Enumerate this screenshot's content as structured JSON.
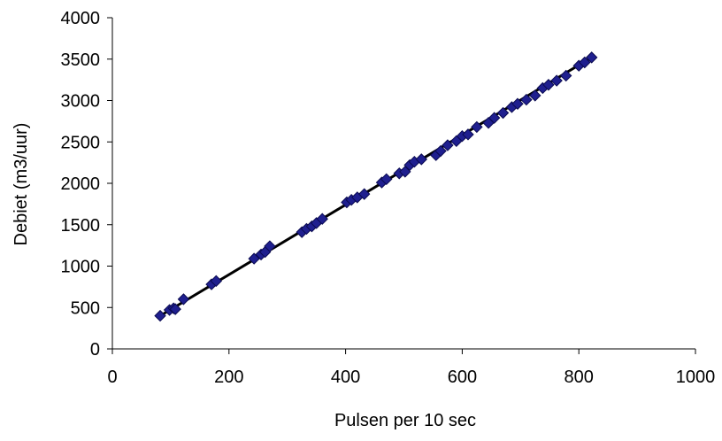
{
  "chart_data": {
    "type": "scatter",
    "title": "",
    "xlabel": "Pulsen per 10 sec",
    "ylabel": "Debiet (m3/uur)",
    "xlim": [
      0,
      1000
    ],
    "ylim": [
      0,
      4000
    ],
    "x_ticks": [
      0,
      200,
      400,
      600,
      800,
      1000
    ],
    "y_ticks": [
      0,
      500,
      1000,
      1500,
      2000,
      2500,
      3000,
      3500,
      4000
    ],
    "x_tick_labels": [
      "0",
      "200",
      "400",
      "600",
      "800",
      "1000"
    ],
    "y_tick_labels": [
      "0",
      "500",
      "1000",
      "1500",
      "2000",
      "2500",
      "3000",
      "3500",
      "4000"
    ],
    "grid": false,
    "legend": "none",
    "series": [
      {
        "marker": "diamond",
        "color": "#1f1f8f",
        "x": [
          82,
          98,
          105,
          108,
          122,
          170,
          178,
          243,
          255,
          262,
          270,
          325,
          333,
          342,
          350,
          360,
          402,
          410,
          420,
          432,
          462,
          470,
          492,
          502,
          510,
          518,
          530,
          555,
          563,
          575,
          590,
          600,
          610,
          625,
          645,
          655,
          670,
          685,
          695,
          710,
          725,
          738,
          748,
          762,
          778,
          800,
          810,
          822
        ],
        "y": [
          400,
          470,
          490,
          480,
          600,
          780,
          820,
          1090,
          1140,
          1170,
          1240,
          1410,
          1450,
          1480,
          1520,
          1570,
          1770,
          1800,
          1830,
          1870,
          2010,
          2050,
          2120,
          2140,
          2220,
          2260,
          2290,
          2340,
          2390,
          2460,
          2510,
          2570,
          2590,
          2680,
          2730,
          2790,
          2850,
          2920,
          2960,
          3010,
          3060,
          3150,
          3190,
          3240,
          3300,
          3420,
          3460,
          3520
        ]
      }
    ],
    "trendline": {
      "color": "#000000",
      "x": [
        82,
        822
      ],
      "y": [
        400,
        3520
      ]
    }
  }
}
